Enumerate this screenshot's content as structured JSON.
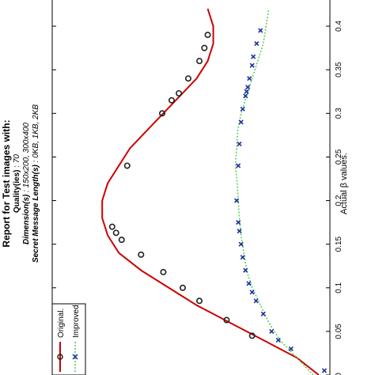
{
  "chart_data": {
    "type": "line",
    "orientation": "rotated-90-cw",
    "title": "Report for Test images with:",
    "subtitle_lines": [
      {
        "label": "Quality(ies)",
        "value": "70"
      },
      {
        "label": "Dimension(s)",
        "value": "150x200, 300x400"
      },
      {
        "label": "Secret Message Length(s)",
        "value": "0KB, 1KB, 2KB"
      }
    ],
    "xlabel": "Actual β values.",
    "ylabel": "",
    "xlim": [
      0,
      0.43
    ],
    "ylim": [
      0,
      0.5
    ],
    "x_ticks": [
      "0",
      "0.05",
      "0.1",
      "0.15",
      "0.2",
      "0.25",
      "0.3",
      "0.35",
      "0.4"
    ],
    "x_tick_values": [
      0,
      0.05,
      0.1,
      0.15,
      0.2,
      0.25,
      0.3,
      0.35,
      0.4
    ],
    "legend": {
      "placement": "bottom-left",
      "entries": [
        "Original.",
        "Improved."
      ]
    },
    "series": [
      {
        "name": "Original.",
        "color": "#cc0000",
        "marker": "circle",
        "marker_color": "#222222",
        "x": [
          0.0,
          0.02,
          0.04,
          0.06,
          0.08,
          0.1,
          0.12,
          0.14,
          0.16,
          0.18,
          0.2,
          0.22,
          0.24,
          0.26,
          0.28,
          0.3,
          0.32,
          0.34,
          0.36,
          0.38,
          0.4,
          0.42
        ],
        "y": [
          0.02,
          0.06,
          0.12,
          0.18,
          0.24,
          0.29,
          0.34,
          0.38,
          0.4,
          0.41,
          0.41,
          0.4,
          0.38,
          0.36,
          0.33,
          0.3,
          0.27,
          0.24,
          0.22,
          0.21,
          0.21,
          0.22
        ],
        "markers_x": [
          0.045,
          0.063,
          0.085,
          0.1,
          0.118,
          0.138,
          0.155,
          0.163,
          0.17,
          0.24,
          0.3,
          0.315,
          0.323,
          0.34,
          0.36,
          0.375,
          0.39
        ],
        "markers_y": [
          0.14,
          0.186,
          0.235,
          0.265,
          0.3,
          0.34,
          0.375,
          0.385,
          0.392,
          0.365,
          0.302,
          0.285,
          0.272,
          0.255,
          0.235,
          0.226,
          0.22
        ]
      },
      {
        "name": "Improved.",
        "color": "#55cc55",
        "marker": "x",
        "marker_color": "#1a2fa0",
        "x": [
          0.0,
          0.02,
          0.04,
          0.06,
          0.08,
          0.1,
          0.12,
          0.14,
          0.16,
          0.18,
          0.2,
          0.22,
          0.24,
          0.26,
          0.28,
          0.3,
          0.32,
          0.34,
          0.36,
          0.38,
          0.4,
          0.42
        ],
        "y": [
          0.03,
          0.06,
          0.09,
          0.11,
          0.125,
          0.14,
          0.15,
          0.155,
          0.16,
          0.163,
          0.165,
          0.167,
          0.17,
          0.168,
          0.166,
          0.16,
          0.15,
          0.14,
          0.13,
          0.12,
          0.115,
          0.11
        ],
        "markers_x": [
          0.005,
          0.03,
          0.04,
          0.05,
          0.07,
          0.085,
          0.095,
          0.105,
          0.12,
          0.135,
          0.15,
          0.165,
          0.175,
          0.2,
          0.24,
          0.265,
          0.29,
          0.305,
          0.32,
          0.325,
          0.33,
          0.34,
          0.355,
          0.365,
          0.38,
          0.395
        ],
        "markers_y": [
          0.01,
          0.07,
          0.093,
          0.105,
          0.12,
          0.133,
          0.14,
          0.146,
          0.152,
          0.157,
          0.16,
          0.163,
          0.165,
          0.168,
          0.165,
          0.163,
          0.16,
          0.157,
          0.152,
          0.15,
          0.148,
          0.145,
          0.14,
          0.138,
          0.132,
          0.125
        ]
      }
    ]
  }
}
